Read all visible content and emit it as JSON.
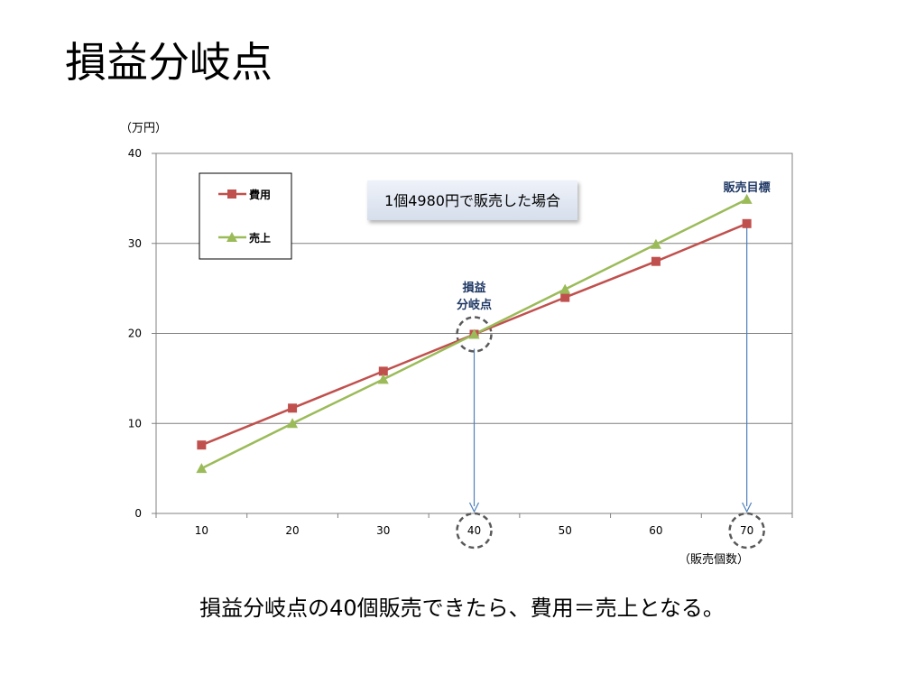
{
  "slide": {
    "title": "損益分岐点",
    "caption": "損益分岐点の40個販売できたら、費用＝売上となる。"
  },
  "chart_data": {
    "type": "line",
    "x": [
      10,
      20,
      30,
      40,
      50,
      60,
      70
    ],
    "xticklabels": [
      "10",
      "20",
      "30",
      "40",
      "50",
      "60",
      "70"
    ],
    "xlabel": "（販売個数）",
    "ylabel": "（万円）",
    "ylim": [
      0,
      40
    ],
    "yticks": [
      0,
      10,
      20,
      30,
      40
    ],
    "grid": true,
    "legend_position": "top-left",
    "series": [
      {
        "name": "費用",
        "values": [
          7.6,
          11.7,
          15.8,
          19.9,
          24.0,
          28.0,
          32.2
        ],
        "color": "#c0504d",
        "marker": "square"
      },
      {
        "name": "売上",
        "values": [
          5.0,
          10.0,
          14.9,
          19.9,
          24.9,
          29.9,
          34.9
        ],
        "color": "#9bbb59",
        "marker": "triangle"
      }
    ],
    "annotations": {
      "box_label": "1個4980円で販売した場合",
      "breakeven_label_line1": "損益",
      "breakeven_label_line2": "分岐点",
      "breakeven_x": 40,
      "target_label": "販売目標",
      "target_x": 70,
      "annotation_text_color": "#1f3864",
      "arrow_color": "#4f81bd"
    }
  }
}
